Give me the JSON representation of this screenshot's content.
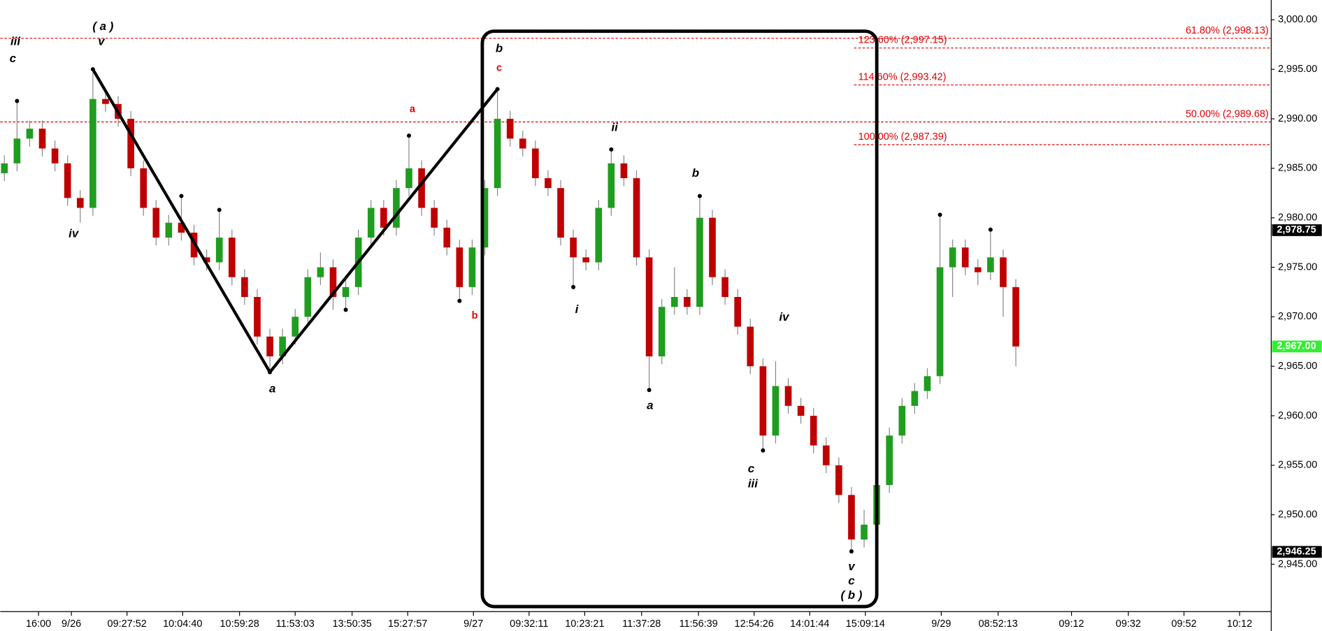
{
  "chart_data": {
    "type": "candlestick",
    "up_color": "#1f9d1f",
    "down_color": "#c00000",
    "xlim": [
      -0.33,
      100.2
    ],
    "ylim": [
      2940.3,
      3002
    ],
    "yticks": [
      {
        "value": 2945,
        "label": "2,945.00"
      },
      {
        "value": 2950,
        "label": "2,950.00"
      },
      {
        "value": 2955,
        "label": "2,955.00"
      },
      {
        "value": 2960,
        "label": "2,960.00"
      },
      {
        "value": 2965,
        "label": "2,965.00"
      },
      {
        "value": 2970,
        "label": "2,970.00"
      },
      {
        "value": 2975,
        "label": "2,975.00"
      },
      {
        "value": 2980,
        "label": "2,980.00"
      },
      {
        "value": 2985,
        "label": "2,985.00"
      },
      {
        "value": 2990,
        "label": "2,990.00"
      },
      {
        "value": 2995,
        "label": "2,995.00"
      },
      {
        "value": 3000,
        "label": "3,000.00"
      }
    ],
    "xticks": [
      {
        "value": 2.7,
        "label": "16:00"
      },
      {
        "value": 5.3,
        "label": "9/26"
      },
      {
        "value": 9.7,
        "label": "09:27:52"
      },
      {
        "value": 14.1,
        "label": "10:04:40"
      },
      {
        "value": 18.6,
        "label": "10:59:28"
      },
      {
        "value": 23,
        "label": "11:53:03"
      },
      {
        "value": 27.5,
        "label": "13:50:35"
      },
      {
        "value": 31.9,
        "label": "15:27:57"
      },
      {
        "value": 37.1,
        "label": "9/27"
      },
      {
        "value": 41.5,
        "label": "09:32:11"
      },
      {
        "value": 45.9,
        "label": "10:23:21"
      },
      {
        "value": 50.4,
        "label": "11:37:28"
      },
      {
        "value": 54.9,
        "label": "11:56:39"
      },
      {
        "value": 59.3,
        "label": "12:54:26"
      },
      {
        "value": 63.7,
        "label": "14:01:44"
      },
      {
        "value": 68.1,
        "label": "15:09:14"
      },
      {
        "value": 74.1,
        "label": "9/29"
      },
      {
        "value": 78.6,
        "label": "08:52:13"
      },
      {
        "value": 84.4,
        "label": "09:12"
      },
      {
        "value": 88.9,
        "label": "09:32"
      },
      {
        "value": 93.3,
        "label": "09:52"
      },
      {
        "value": 97.7,
        "label": "10:12"
      }
    ],
    "open": [
      2984.5,
      2985.5,
      2988,
      2989,
      2987,
      2985.5,
      2982,
      2981,
      2992,
      2991.5,
      2990,
      2985,
      2981,
      2978,
      2979.5,
      2978.5,
      2976,
      2975.5,
      2978,
      2974,
      2972,
      2968,
      2966,
      2968,
      2970,
      2974,
      2975,
      2972,
      2973,
      2978,
      2981,
      2979,
      2983,
      2985,
      2981,
      2979,
      2977,
      2973,
      2977,
      2983,
      2990,
      2988,
      2987,
      2984,
      2983,
      2978,
      2976,
      2975.5,
      2981,
      2985.5,
      2984,
      2976,
      2966,
      2971,
      2972,
      2971,
      2980,
      2974,
      2972,
      2969,
      2965,
      2958,
      2963,
      2961,
      2960,
      2957,
      2955,
      2952,
      2947.5,
      2949,
      2953,
      2958,
      2961,
      2962.5,
      2964,
      2975,
      2977,
      2975,
      2974.5,
      2976,
      2973
    ],
    "high": [
      2986.3,
      2991.8,
      2989.8,
      2989.8,
      2987.8,
      2986.3,
      2982.8,
      2995,
      2992.8,
      2992.3,
      2990.8,
      2985.8,
      2981.8,
      2980.3,
      2982.2,
      2979.3,
      2976.8,
      2980.8,
      2978.8,
      2974.8,
      2972.8,
      2968.8,
      2968.8,
      2970.8,
      2974.8,
      2976.5,
      2975.8,
      2973.8,
      2978.8,
      2981.8,
      2981.8,
      2983.8,
      2988.3,
      2985.8,
      2981.8,
      2979.8,
      2977.8,
      2977.8,
      2983.8,
      2993,
      2990.8,
      2988.8,
      2987.8,
      2984.8,
      2983.8,
      2978.8,
      2976.8,
      2981.8,
      2986.9,
      2986.3,
      2984.8,
      2976.8,
      2971.8,
      2975,
      2972.8,
      2982.2,
      2980.8,
      2974.8,
      2972.8,
      2969.8,
      2965.8,
      2965.5,
      2963.8,
      2961.8,
      2960.8,
      2957.8,
      2955.8,
      2952.8,
      2950.5,
      2953.8,
      2958.8,
      2961.8,
      2963.3,
      2964.8,
      2980.3,
      2977.8,
      2977.8,
      2975.8,
      2978.8,
      2976.8,
      2973.8
    ],
    "low": [
      2983.7,
      2984.7,
      2987.2,
      2986.2,
      2984.7,
      2981.2,
      2979.5,
      2980.2,
      2990.7,
      2989.2,
      2984.2,
      2980.2,
      2977.2,
      2977.2,
      2977.7,
      2975.2,
      2974.7,
      2974.7,
      2973.2,
      2971.2,
      2967.2,
      2964.4,
      2965.2,
      2967.2,
      2969.2,
      2973.2,
      2970.7,
      2970.7,
      2972.2,
      2977.2,
      2978.2,
      2978.2,
      2982.2,
      2980.2,
      2978.2,
      2976.2,
      2971.6,
      2972.2,
      2976.2,
      2982.2,
      2987.2,
      2986.2,
      2983.2,
      2982.2,
      2977.2,
      2973,
      2974.7,
      2974.7,
      2980.2,
      2983.2,
      2975.2,
      2962.6,
      2965.2,
      2970.2,
      2970.2,
      2970.2,
      2973.2,
      2971.2,
      2968.2,
      2964.2,
      2956.5,
      2957.2,
      2960.2,
      2959.2,
      2956.2,
      2954.2,
      2951.2,
      2946.3,
      2946.7,
      2948.2,
      2952.2,
      2957.2,
      2960.2,
      2961.7,
      2963.2,
      2972,
      2974.2,
      2973.2,
      2973.7,
      2970,
      2965
    ],
    "close": [
      2985.5,
      2988,
      2989,
      2987,
      2985.5,
      2982,
      2981,
      2992,
      2991.5,
      2990,
      2985,
      2981,
      2978,
      2979.5,
      2978.5,
      2976,
      2975.5,
      2978,
      2974,
      2972,
      2968,
      2966,
      2968,
      2970,
      2974,
      2975,
      2972,
      2973,
      2978,
      2981,
      2979,
      2983,
      2985,
      2981,
      2979,
      2977,
      2973,
      2977,
      2983,
      2990,
      2988,
      2987,
      2984,
      2983,
      2978,
      2976,
      2975.5,
      2981,
      2985.5,
      2984,
      2976,
      2966,
      2971,
      2972,
      2971,
      2980,
      2974,
      2972,
      2969,
      2965,
      2958,
      2963,
      2961,
      2960,
      2957,
      2955,
      2952,
      2947.5,
      2949,
      2953,
      2958,
      2961,
      2962.5,
      2964,
      2975,
      2977,
      2975,
      2974.5,
      2976,
      2973,
      2967
    ],
    "fib_levels": [
      {
        "value": 2998.13,
        "label": "61.80% (2,998.13)",
        "full": true
      },
      {
        "value": 2997.15,
        "label": "123.60% (2,997.15)",
        "full": false
      },
      {
        "value": 2993.42,
        "label": "114.60% (2,993.42)",
        "full": false
      },
      {
        "value": 2989.68,
        "label": "50.00% (2,989.68)",
        "full": true
      },
      {
        "value": 2987.39,
        "label": "100.00% (2,987.39)",
        "full": false
      }
    ],
    "fib_color": "#e00000",
    "price_markers": [
      {
        "value": 2978.75,
        "label": "2,978.75",
        "color": "#000000"
      },
      {
        "value": 2967,
        "label": "2,967.00",
        "color": "#33ee33"
      },
      {
        "value": 2946.25,
        "label": "2,946.25",
        "color": "#000000"
      }
    ],
    "wave_line": {
      "x": [
        7,
        21,
        39
      ],
      "y": [
        2995,
        2964.4,
        2993
      ]
    },
    "annotations": [
      {
        "text": "iii",
        "color": "#000000"
      },
      {
        "text": "c",
        "color": "#000000"
      },
      {
        "text": "( a )",
        "color": "#000000"
      },
      {
        "text": "v",
        "color": "#000000"
      },
      {
        "text": "iv",
        "color": "#000000"
      },
      {
        "text": "a",
        "color": "#000000"
      },
      {
        "text": "a",
        "color": "#e00000"
      },
      {
        "text": "b",
        "color": "#e00000"
      },
      {
        "text": "b",
        "color": "#000000"
      },
      {
        "text": "c",
        "color": "#e00000"
      },
      {
        "text": "ii",
        "color": "#000000"
      },
      {
        "text": "i",
        "color": "#000000"
      },
      {
        "text": "b",
        "color": "#000000"
      },
      {
        "text": "a",
        "color": "#000000"
      },
      {
        "text": "iv",
        "color": "#000000"
      },
      {
        "text": "c",
        "color": "#000000"
      },
      {
        "text": "iii",
        "color": "#000000"
      },
      {
        "text": "v",
        "color": "#000000"
      },
      {
        "text": "c",
        "color": "#000000"
      },
      {
        "text": "( b )",
        "color": "#000000"
      }
    ]
  }
}
